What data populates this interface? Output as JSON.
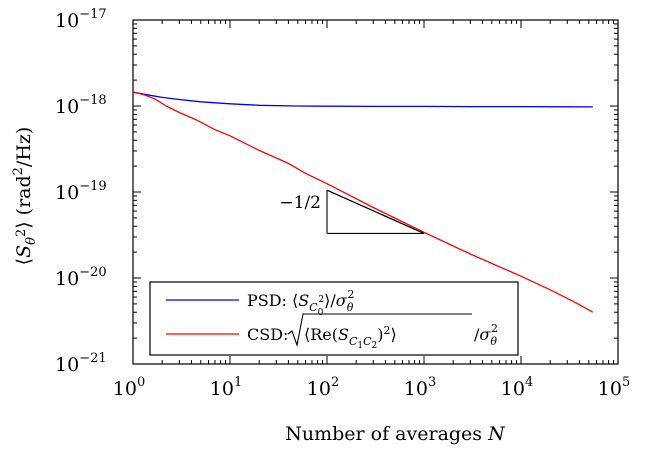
{
  "chart_data": {
    "type": "line",
    "x_scale": "log",
    "y_scale": "log",
    "xlim": [
      1,
      100000
    ],
    "ylim": [
      1e-21,
      1e-17
    ],
    "xlabel": "Number of averages N",
    "ylabel": "⟨S_θ²⟩ (rad²/Hz)",
    "x_ticks": [
      {
        "value": 1,
        "base": "10",
        "exp": "0"
      },
      {
        "value": 10,
        "base": "10",
        "exp": "1"
      },
      {
        "value": 100,
        "base": "10",
        "exp": "2"
      },
      {
        "value": 1000,
        "base": "10",
        "exp": "3"
      },
      {
        "value": 10000,
        "base": "10",
        "exp": "4"
      },
      {
        "value": 100000,
        "base": "10",
        "exp": "5"
      }
    ],
    "y_ticks": [
      {
        "value": 1e-21,
        "base": "10",
        "exp": "−21"
      },
      {
        "value": 1e-20,
        "base": "10",
        "exp": "−20"
      },
      {
        "value": 1e-19,
        "base": "10",
        "exp": "−19"
      },
      {
        "value": 1e-18,
        "base": "10",
        "exp": "−18"
      },
      {
        "value": 1e-17,
        "base": "10",
        "exp": "−17"
      }
    ],
    "grid": false,
    "legend_position": "bottom-left",
    "series": [
      {
        "name": "PSD: ⟨S_C0²⟩/σ_θ²",
        "color": "#0000ff",
        "x": [
          1,
          1.5,
          2,
          3,
          5,
          10,
          20,
          50,
          100,
          300,
          1000,
          3000,
          10000,
          30000,
          55000
        ],
        "y": [
          1.45e-18,
          1.33e-18,
          1.26e-18,
          1.19e-18,
          1.12e-18,
          1.06e-18,
          1.02e-18,
          1e-18,
          9.95e-19,
          9.9e-19,
          9.9e-19,
          9.85e-19,
          9.85e-19,
          9.8e-19,
          9.75e-19
        ]
      },
      {
        "name": "CSD: √⟨Re(S_C1C2)²⟩/σ_θ²",
        "color": "#ff0000",
        "x": [
          1,
          1.3,
          1.7,
          2.2,
          3,
          4.5,
          7,
          10,
          20,
          40,
          60,
          100,
          300,
          1000,
          3000,
          10000,
          20000,
          35000,
          55000
        ],
        "y": [
          1.45e-18,
          1.35e-18,
          1.2e-18,
          1e-18,
          8.4e-19,
          6.9e-19,
          5.3e-19,
          4.5e-19,
          3.05e-19,
          2.15e-19,
          1.65e-19,
          1.25e-19,
          6.6e-20,
          3.4e-20,
          1.9e-20,
          1.05e-20,
          7.3e-21,
          5.3e-21,
          4e-21
        ]
      }
    ],
    "annotation": {
      "label": "−1/2",
      "x": [
        100,
        1000
      ],
      "y": [
        1.05e-19,
        3.3e-20
      ]
    }
  },
  "legend": {
    "psd_prefix": "PSD: ",
    "csd_prefix": "CSD: "
  },
  "colors": {
    "psd": "#0000ff",
    "csd": "#ff0000",
    "axis": "#000000"
  }
}
